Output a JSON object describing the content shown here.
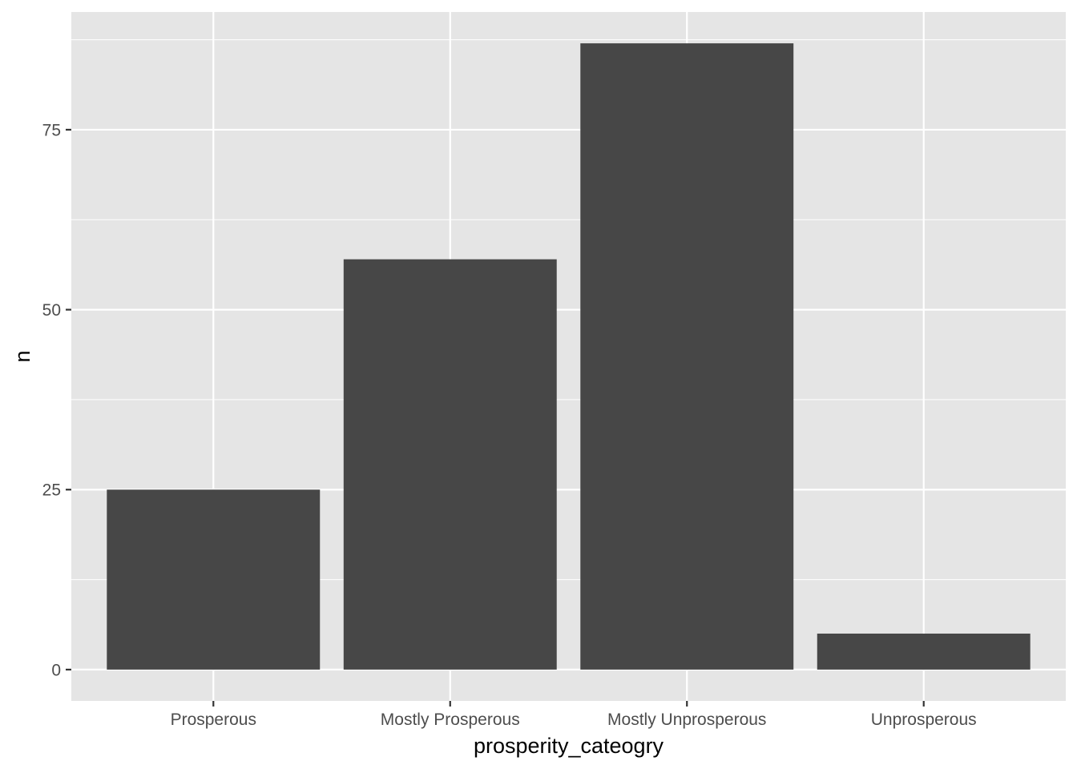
{
  "chart_data": {
    "type": "bar",
    "categories": [
      "Prosperous",
      "Mostly Prosperous",
      "Mostly Unprosperous",
      "Unprosperous"
    ],
    "values": [
      25,
      57,
      87,
      5
    ],
    "xlabel": "prosperity_cateogry",
    "ylabel": "n",
    "ylim": [
      -4.35,
      91.35
    ],
    "yticks": [
      0,
      25,
      50,
      75
    ],
    "ytick_labels": [
      "0",
      "25",
      "50",
      "75"
    ],
    "grid": true,
    "legend": "none",
    "colors": {
      "panel": "#e5e5e5",
      "grid": "#ffffff",
      "bar": "#474747",
      "tick_text": "#4d4d4d",
      "tick_mark": "#333333"
    }
  }
}
